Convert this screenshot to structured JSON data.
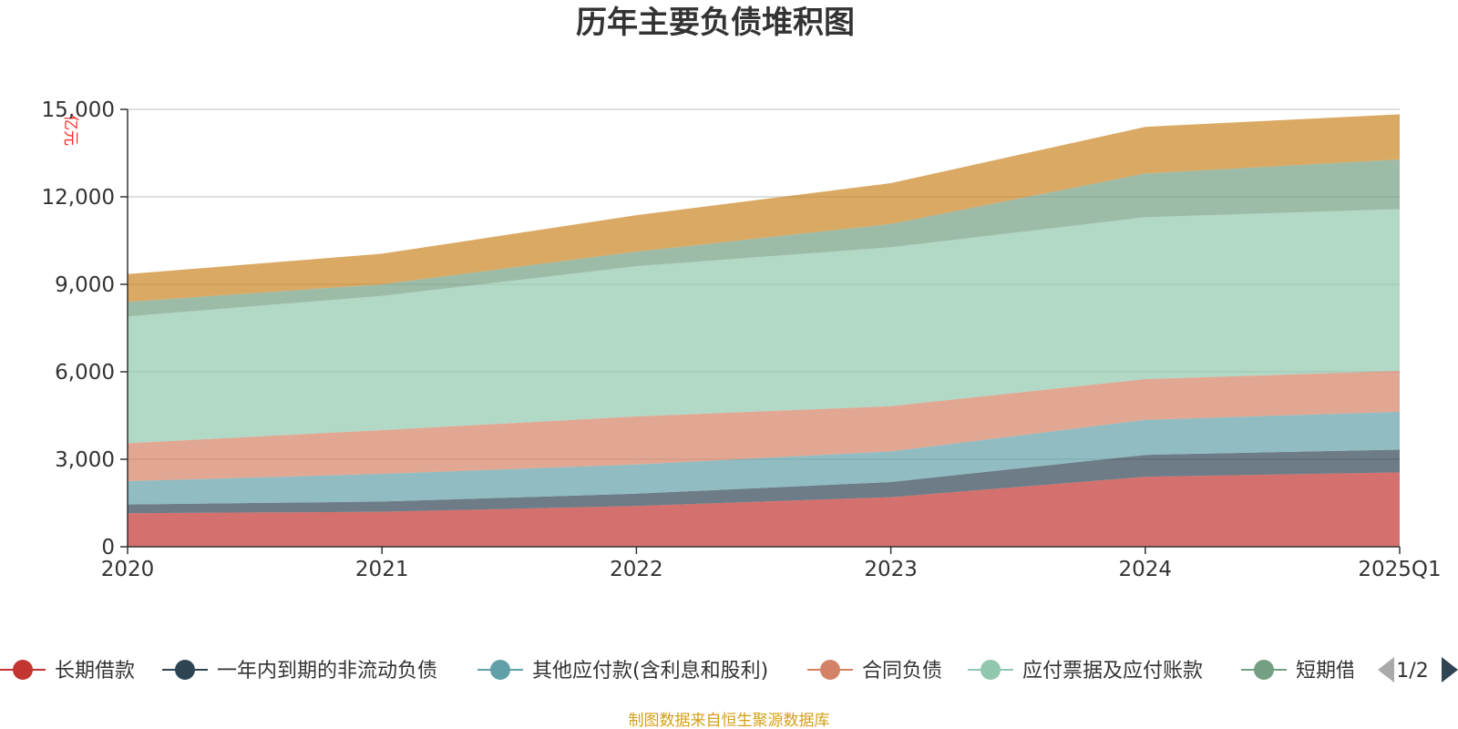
{
  "chart_data": {
    "type": "area",
    "stacked": true,
    "title": "历年主要负债堆积图",
    "unit_label": "亿元",
    "categories": [
      "2020",
      "2021",
      "2022",
      "2023",
      "2024",
      "2025Q1"
    ],
    "ylim": [
      0,
      15000
    ],
    "yticks": [
      "0",
      "3,000",
      "6,000",
      "9,000",
      "12,000",
      "15,000"
    ],
    "ytick_values": [
      0,
      3000,
      6000,
      9000,
      12000,
      15000
    ],
    "grid": true,
    "legend_position": "bottom",
    "series": [
      {
        "name": "长期借款",
        "color": "#c23531",
        "values": [
          1150,
          1200,
          1400,
          1700,
          2400,
          2550
        ]
      },
      {
        "name": "一年内到期的非流动负债",
        "color": "#2f4554",
        "values": [
          300,
          350,
          420,
          520,
          750,
          780
        ]
      },
      {
        "name": "其他应付款(含利息和股利)",
        "color": "#61a0a8",
        "values": [
          800,
          950,
          1000,
          1050,
          1200,
          1300
        ]
      },
      {
        "name": "合同负债",
        "color": "#d48265",
        "values": [
          1300,
          1500,
          1650,
          1550,
          1400,
          1400
        ]
      },
      {
        "name": "应付票据及应付账款",
        "color": "#91c7ae",
        "values": [
          4350,
          4600,
          5150,
          5450,
          5550,
          5550
        ]
      },
      {
        "name": "短期借款",
        "color": "#749f83",
        "values": [
          500,
          400,
          500,
          800,
          1500,
          1700
        ]
      },
      {
        "name": "",
        "color": "#ca8622",
        "values": [
          950,
          1050,
          1250,
          1400,
          1600,
          1550
        ]
      }
    ]
  },
  "legend": {
    "items": [
      "长期借款",
      "一年内到期的非流动负债",
      "其他应付款(含利息和股利)",
      "合同负债",
      "应付票据及应付账款",
      "短期借款"
    ],
    "colors": [
      "#c23531",
      "#2f4554",
      "#61a0a8",
      "#d48265",
      "#91c7ae",
      "#749f83"
    ],
    "page_indicator": "1/2"
  },
  "footer": {
    "source": "制图数据来自恒生聚源数据库"
  }
}
